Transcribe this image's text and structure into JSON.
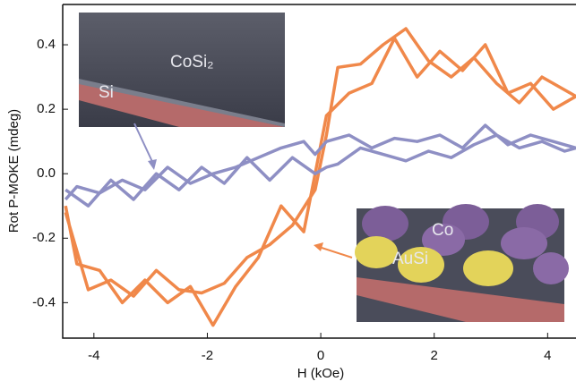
{
  "chart_data": {
    "type": "line",
    "x_label": "H (kOe)",
    "y_label": "Rot P-MOKE (mdeg)",
    "xlim": [
      -4.55,
      4.5
    ],
    "ylim": [
      -0.51,
      0.525
    ],
    "xticks": [
      -4,
      -2,
      0,
      2,
      4
    ],
    "yticks": [
      -0.4,
      -0.2,
      {
        "value": 0,
        "label": "0.0"
      },
      0.2,
      0.4
    ],
    "series": [
      {
        "color": "#f0884a",
        "x": [
          -4.5,
          -4.1,
          -3.7,
          -3.3,
          -2.9,
          -2.5,
          -2.1,
          -1.7,
          -1.3,
          -0.9,
          -0.5,
          -0.1,
          0.1,
          0.3,
          0.7,
          1.1,
          1.5,
          1.9,
          2.3,
          2.7,
          3.1,
          3.5,
          3.9,
          4.3,
          4.5,
          4.5,
          4.1,
          3.7,
          3.3,
          2.9,
          2.5,
          2.1,
          1.7,
          1.3,
          0.9,
          0.5,
          0.1,
          -0.1,
          -0.3,
          -0.7,
          -1.1,
          -1.5,
          -1.9,
          -2.3,
          -2.7,
          -3.1,
          -3.5,
          -3.9,
          -4.3,
          -4.5
        ],
        "values": [
          -0.12,
          -0.36,
          -0.33,
          -0.38,
          -0.3,
          -0.36,
          -0.37,
          -0.34,
          -0.26,
          -0.22,
          -0.16,
          -0.05,
          0.12,
          0.33,
          0.34,
          0.4,
          0.45,
          0.35,
          0.3,
          0.36,
          0.28,
          0.22,
          0.3,
          0.26,
          0.24,
          0.24,
          0.2,
          0.28,
          0.25,
          0.4,
          0.32,
          0.38,
          0.3,
          0.42,
          0.28,
          0.25,
          0.18,
          0,
          -0.18,
          -0.1,
          -0.26,
          -0.35,
          -0.47,
          -0.35,
          -0.4,
          -0.33,
          -0.4,
          -0.3,
          -0.28,
          -0.1
        ]
      },
      {
        "color": "#8e8fc4",
        "x": [
          -4.5,
          -4.1,
          -3.7,
          -3.3,
          -2.9,
          -2.5,
          -2.1,
          -1.7,
          -1.3,
          -0.9,
          -0.5,
          -0.1,
          0.1,
          0.3,
          0.7,
          1.1,
          1.5,
          1.9,
          2.3,
          2.7,
          3.1,
          3.5,
          3.9,
          4.3,
          4.5,
          4.5,
          4.1,
          3.7,
          3.3,
          2.9,
          2.5,
          2.1,
          1.7,
          1.3,
          0.9,
          0.5,
          0.1,
          -0.1,
          -0.3,
          -0.7,
          -1.1,
          -1.5,
          -1.9,
          -2.3,
          -2.7,
          -3.1,
          -3.5,
          -3.9,
          -4.3,
          -4.5
        ],
        "values": [
          -0.05,
          -0.1,
          -0.02,
          -0.08,
          0,
          -0.05,
          0.02,
          -0.03,
          0.05,
          -0.02,
          0.05,
          0,
          0.02,
          0.03,
          0.08,
          0.06,
          0.04,
          0.07,
          0.05,
          0.09,
          0.12,
          0.08,
          0.1,
          0.07,
          0.08,
          0.08,
          0.1,
          0.12,
          0.09,
          0.15,
          0.08,
          0.12,
          0.1,
          0.11,
          0.08,
          0.12,
          0.1,
          0.06,
          0.1,
          0.08,
          0.05,
          0.02,
          0,
          -0.03,
          0.02,
          -0.05,
          -0.02,
          -0.06,
          -0.04,
          -0.08
        ]
      }
    ],
    "insets": [
      {
        "labels": [
          "CoSi₂",
          "Si"
        ]
      },
      {
        "labels": [
          "Co",
          "AuSi"
        ]
      }
    ]
  }
}
